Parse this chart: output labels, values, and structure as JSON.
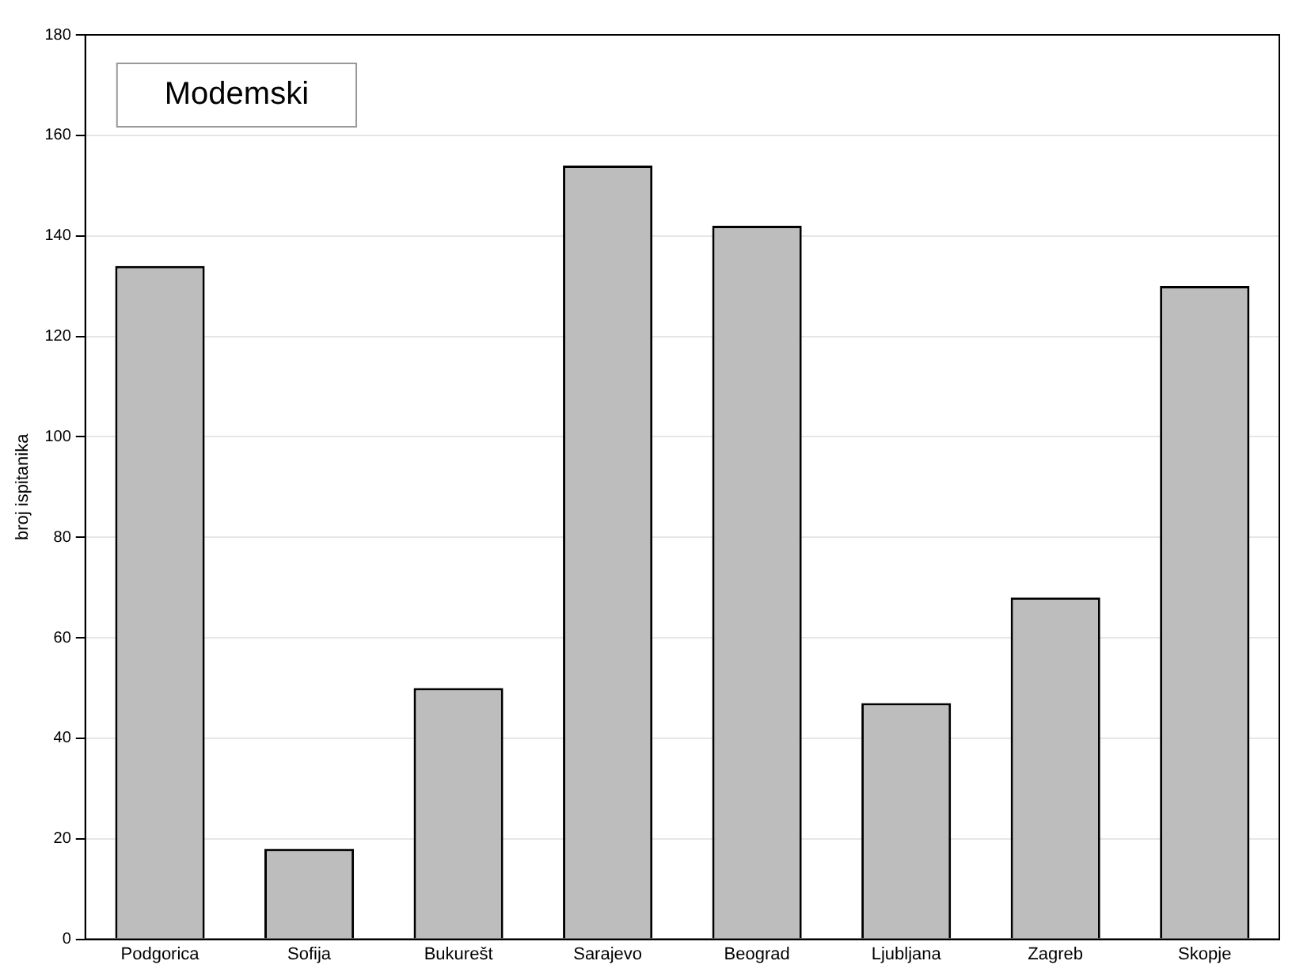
{
  "chart_data": {
    "type": "bar",
    "ylabel": "broj ispitanika",
    "annotations": [
      "Modemski"
    ],
    "categories": [
      "Podgorica",
      "Sofija",
      "Bukurešt",
      "Sarajevo",
      "Beograd",
      "Ljubljana",
      "Zagreb",
      "Skopje"
    ],
    "values": [
      134,
      18,
      50,
      154,
      142,
      47,
      68,
      130
    ],
    "color": "#bdbdbd",
    "ylim": [
      0,
      180
    ],
    "yticks": [
      0,
      20,
      40,
      60,
      80,
      100,
      120,
      140,
      160,
      180
    ],
    "grid": "y"
  }
}
